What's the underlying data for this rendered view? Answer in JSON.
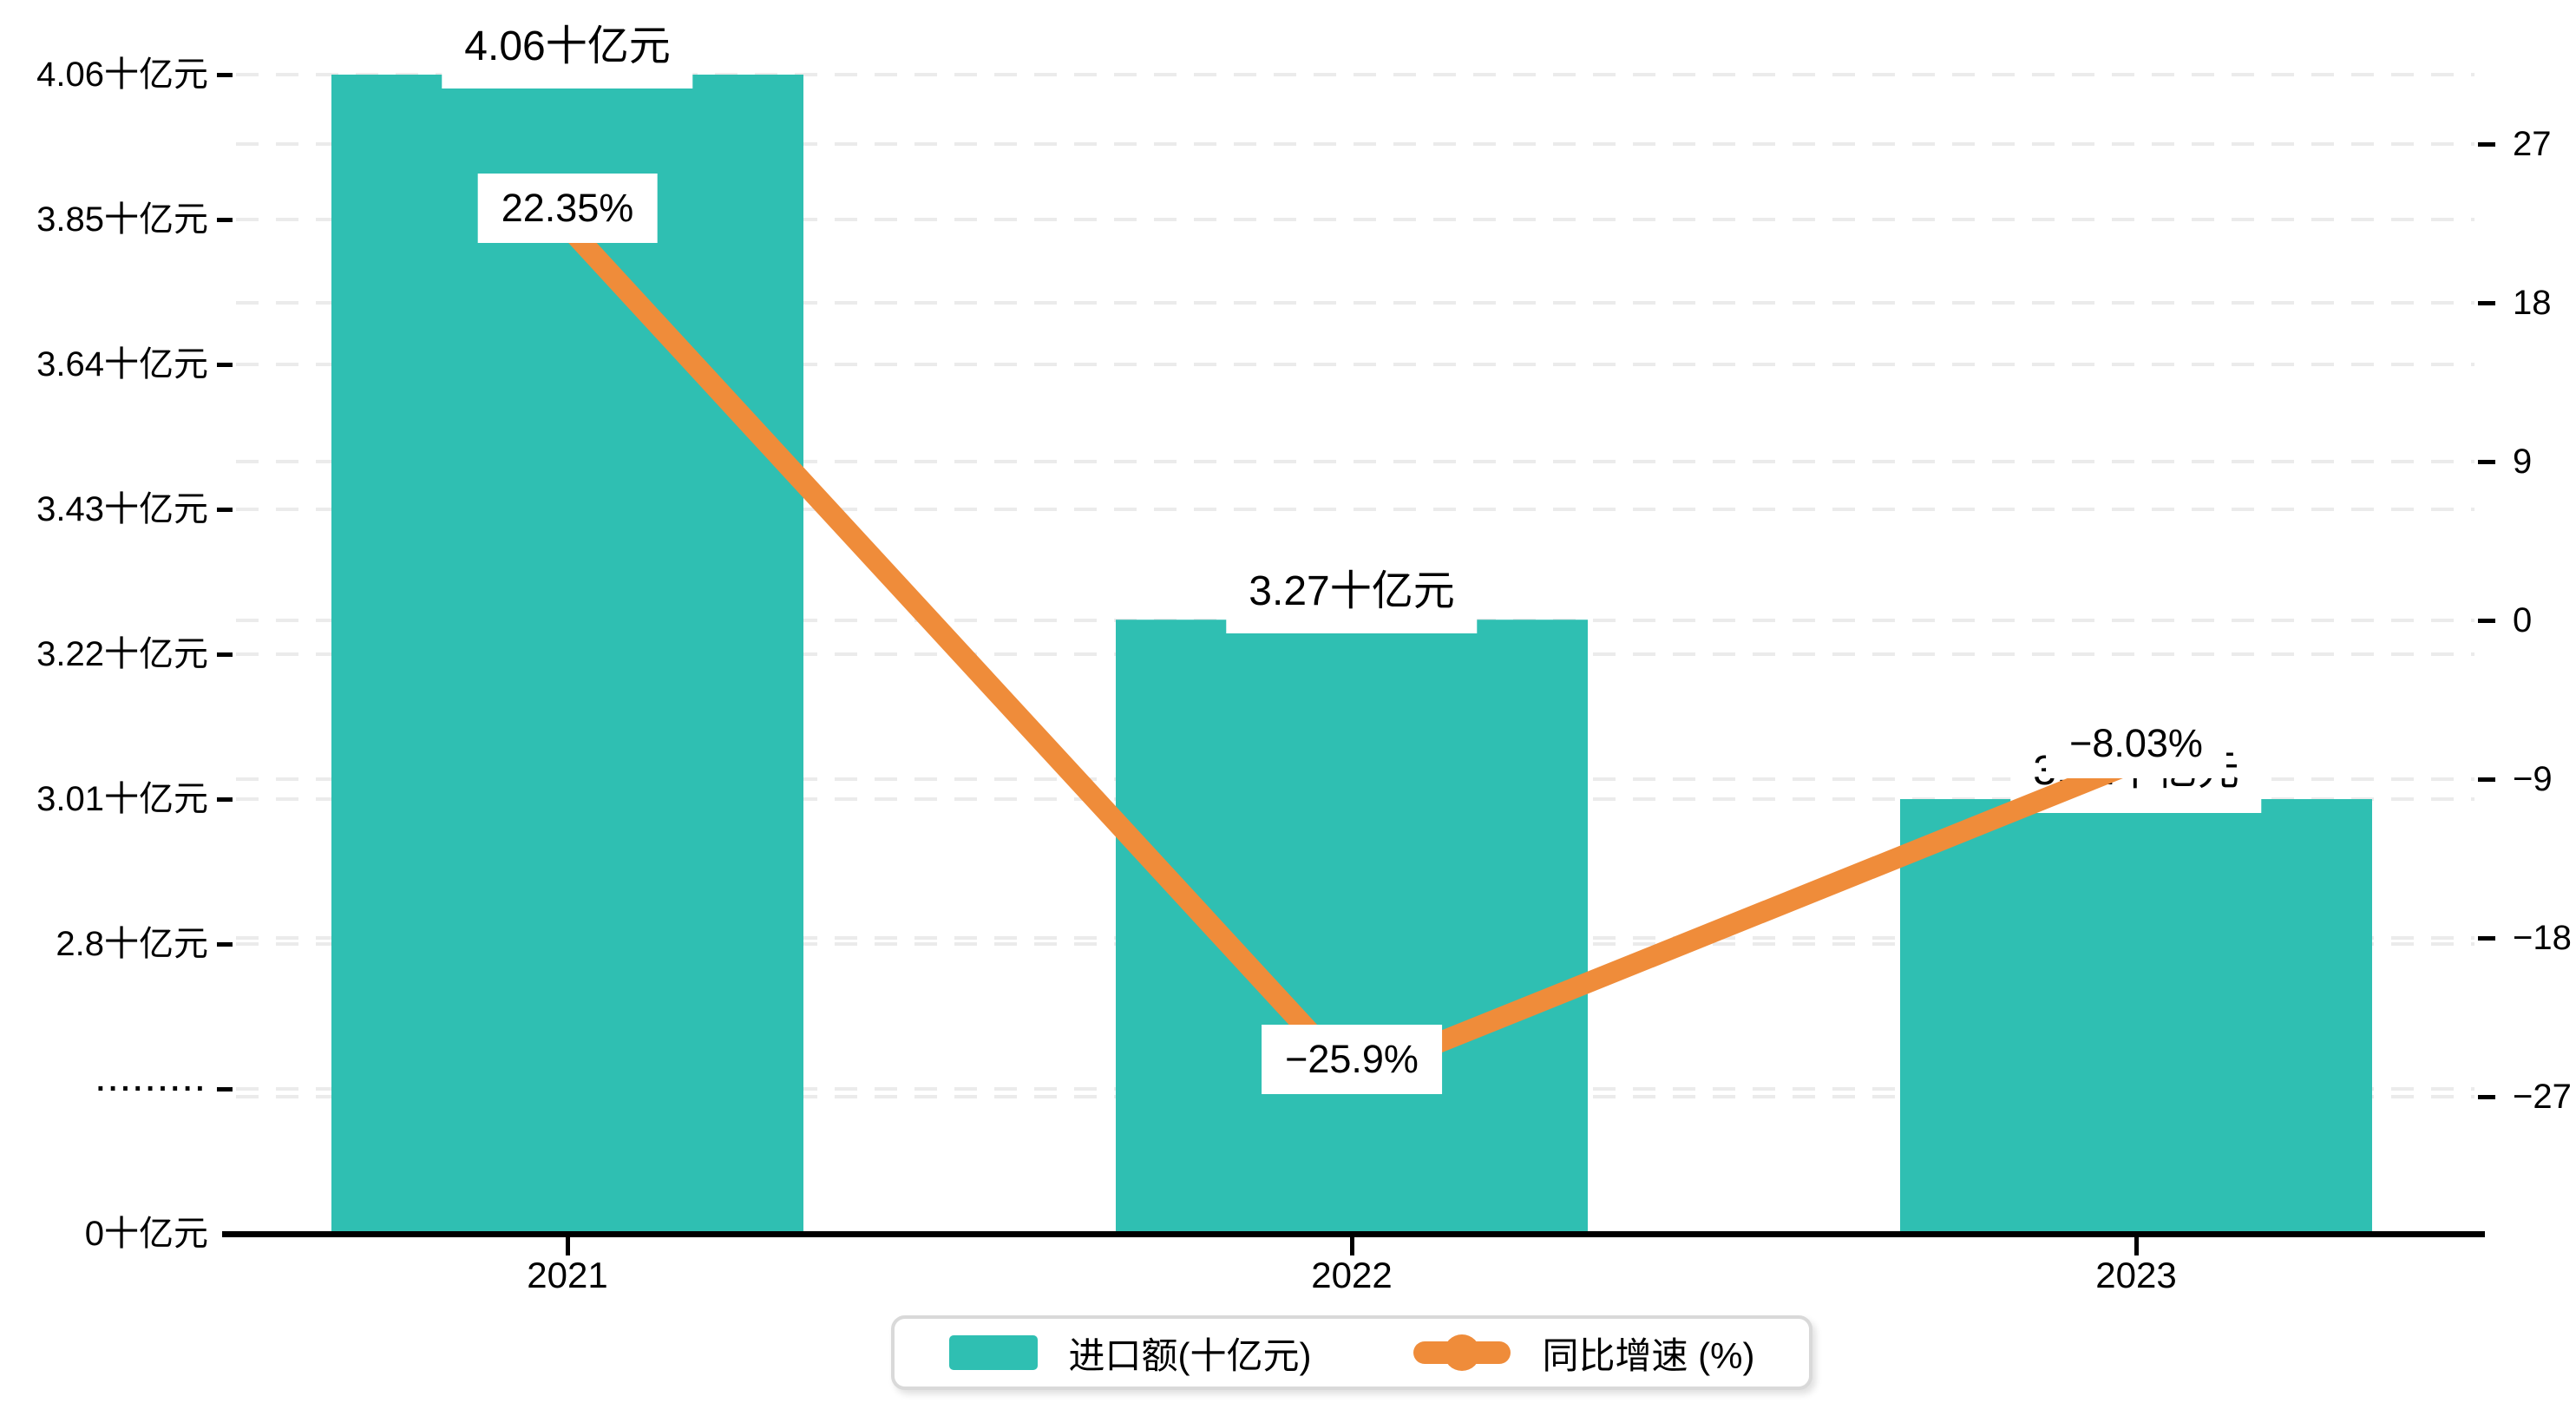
{
  "chart_data": {
    "type": "bar",
    "subtype": "bar+line dual axis, broken left axis",
    "categories": [
      "2021",
      "2022",
      "2023"
    ],
    "series": [
      {
        "name": "进口额(十亿元)",
        "type": "bar",
        "axis": "left",
        "color": "#2fbfb2",
        "values": [
          4.06,
          3.27,
          3.01
        ],
        "labels": [
          "4.06十亿元",
          "3.27十亿元",
          "3.01十亿元"
        ]
      },
      {
        "name": "同比增速 (%)",
        "type": "line",
        "axis": "right",
        "color": "#ef8c3a",
        "values": [
          22.35,
          -25.9,
          -8.03
        ],
        "labels": [
          "22.35%",
          "−25.9%",
          "−8.03%"
        ]
      }
    ],
    "axes": {
      "left": {
        "unit": "十亿元",
        "broken_axis": true,
        "tick_values": [
          4.06,
          3.85,
          3.64,
          3.43,
          3.22,
          3.01,
          2.8,
          null,
          0
        ],
        "tick_labels": [
          "4.06十亿元",
          "3.85十亿元",
          "3.64十亿元",
          "3.43十亿元",
          "3.22十亿元",
          "3.01十亿元",
          "2.8十亿元",
          "·········",
          "0十亿元"
        ]
      },
      "right": {
        "unit": "%",
        "range": [
          -27,
          27
        ],
        "tick_values": [
          27,
          18,
          9,
          0,
          -9,
          -18,
          -27
        ],
        "tick_labels": [
          "27",
          "18",
          "9",
          "0",
          "−9",
          "−18",
          "−27"
        ]
      },
      "x": {
        "tick_labels": [
          "2021",
          "2022",
          "2023"
        ]
      }
    },
    "grid": {
      "shown": true,
      "dashed": true
    },
    "legend_position": "bottom-center"
  },
  "legend": {
    "items": [
      {
        "label": "进口额(十亿元)",
        "marker": "rect",
        "color": "#2fbfb2"
      },
      {
        "label": "同比增速 (%)",
        "marker": "line-dot",
        "color": "#ef8c3a"
      }
    ]
  },
  "colors": {
    "bar": "#2fbfb2",
    "line": "#ef8c3a",
    "grid": "#ebebeb",
    "axis": "#000000",
    "label_bg": "#ffffff",
    "legend_border": "#d9d9d9",
    "background": "#ffffff"
  }
}
